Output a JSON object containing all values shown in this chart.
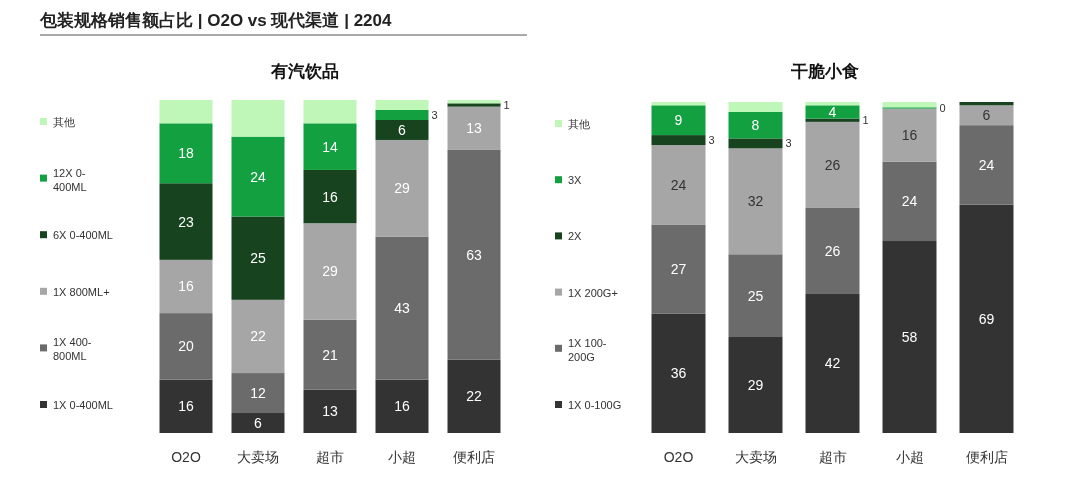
{
  "chart_data": [
    {
      "type": "bar",
      "stacked": true,
      "title": "有汽饮品",
      "annotations": [
        "包装规格销售额占比 | O2O vs 现代渠道 | 2204"
      ],
      "legend": "left",
      "categories": [
        "O2O",
        "大卖场",
        "超市",
        "小超",
        "便利店"
      ],
      "series": [
        {
          "name": "1X 0-400ML",
          "color": "#333333",
          "values": [
            16,
            6,
            13,
            16,
            22
          ],
          "value_labels": [
            "16",
            "6",
            "13",
            "16",
            "22"
          ]
        },
        {
          "name": "1X 400-800ML",
          "color": "#6b6b6b",
          "values": [
            20,
            12,
            21,
            43,
            63
          ],
          "value_labels": [
            "20",
            "12",
            "21",
            "43",
            "63"
          ]
        },
        {
          "name": "1X 800ML+",
          "color": "#a6a6a6",
          "values": [
            16,
            22,
            29,
            29,
            13
          ],
          "value_labels": [
            "16",
            "22",
            "29",
            "29",
            "13"
          ]
        },
        {
          "name": "6X 0-400ML",
          "color": "#17431f",
          "values": [
            23,
            25,
            16,
            6,
            1
          ],
          "value_labels": [
            "23",
            "25",
            "16",
            "6",
            "1"
          ]
        },
        {
          "name": "12X 0-400ML",
          "color": "#12a040",
          "values": [
            18,
            24,
            14,
            3,
            0
          ],
          "value_labels": [
            "18",
            "24",
            "14",
            "3",
            null
          ]
        },
        {
          "name": "其他",
          "color": "#bff7b9",
          "values": [
            7,
            11,
            7,
            3,
            1
          ],
          "value_labels": [
            null,
            null,
            null,
            null,
            null
          ]
        }
      ]
    },
    {
      "type": "bar",
      "stacked": true,
      "title": "干脆小食",
      "legend": "left",
      "categories": [
        "O2O",
        "大卖场",
        "超市",
        "小超",
        "便利店"
      ],
      "series": [
        {
          "name": "1X 0-100G",
          "color": "#333333",
          "values": [
            36,
            29,
            42,
            58,
            69
          ],
          "value_labels": [
            "36",
            "29",
            "42",
            "58",
            "69"
          ]
        },
        {
          "name": "1X 100-200G",
          "color": "#6b6b6b",
          "values": [
            27,
            25,
            26,
            24,
            24
          ],
          "value_labels": [
            "27",
            "25",
            "26",
            "24",
            "24"
          ]
        },
        {
          "name": "1X 200G+",
          "color": "#a6a6a6",
          "values": [
            24,
            32,
            26,
            16,
            6
          ],
          "value_labels": [
            "24",
            "32",
            "26",
            "16",
            "6"
          ]
        },
        {
          "name": "2X",
          "color": "#17431f",
          "values": [
            3,
            3,
            1,
            0,
            1
          ],
          "value_labels": [
            "3",
            "3",
            "1",
            null,
            null
          ]
        },
        {
          "name": "3X",
          "color": "#12a040",
          "values": [
            9,
            8,
            4,
            0.4,
            0
          ],
          "value_labels": [
            "9",
            "8",
            "4",
            "0",
            null
          ]
        },
        {
          "name": "其他",
          "color": "#bff7b9",
          "values": [
            1,
            3,
            1,
            1.6,
            0
          ],
          "value_labels": [
            null,
            null,
            null,
            null,
            null
          ]
        }
      ]
    }
  ]
}
